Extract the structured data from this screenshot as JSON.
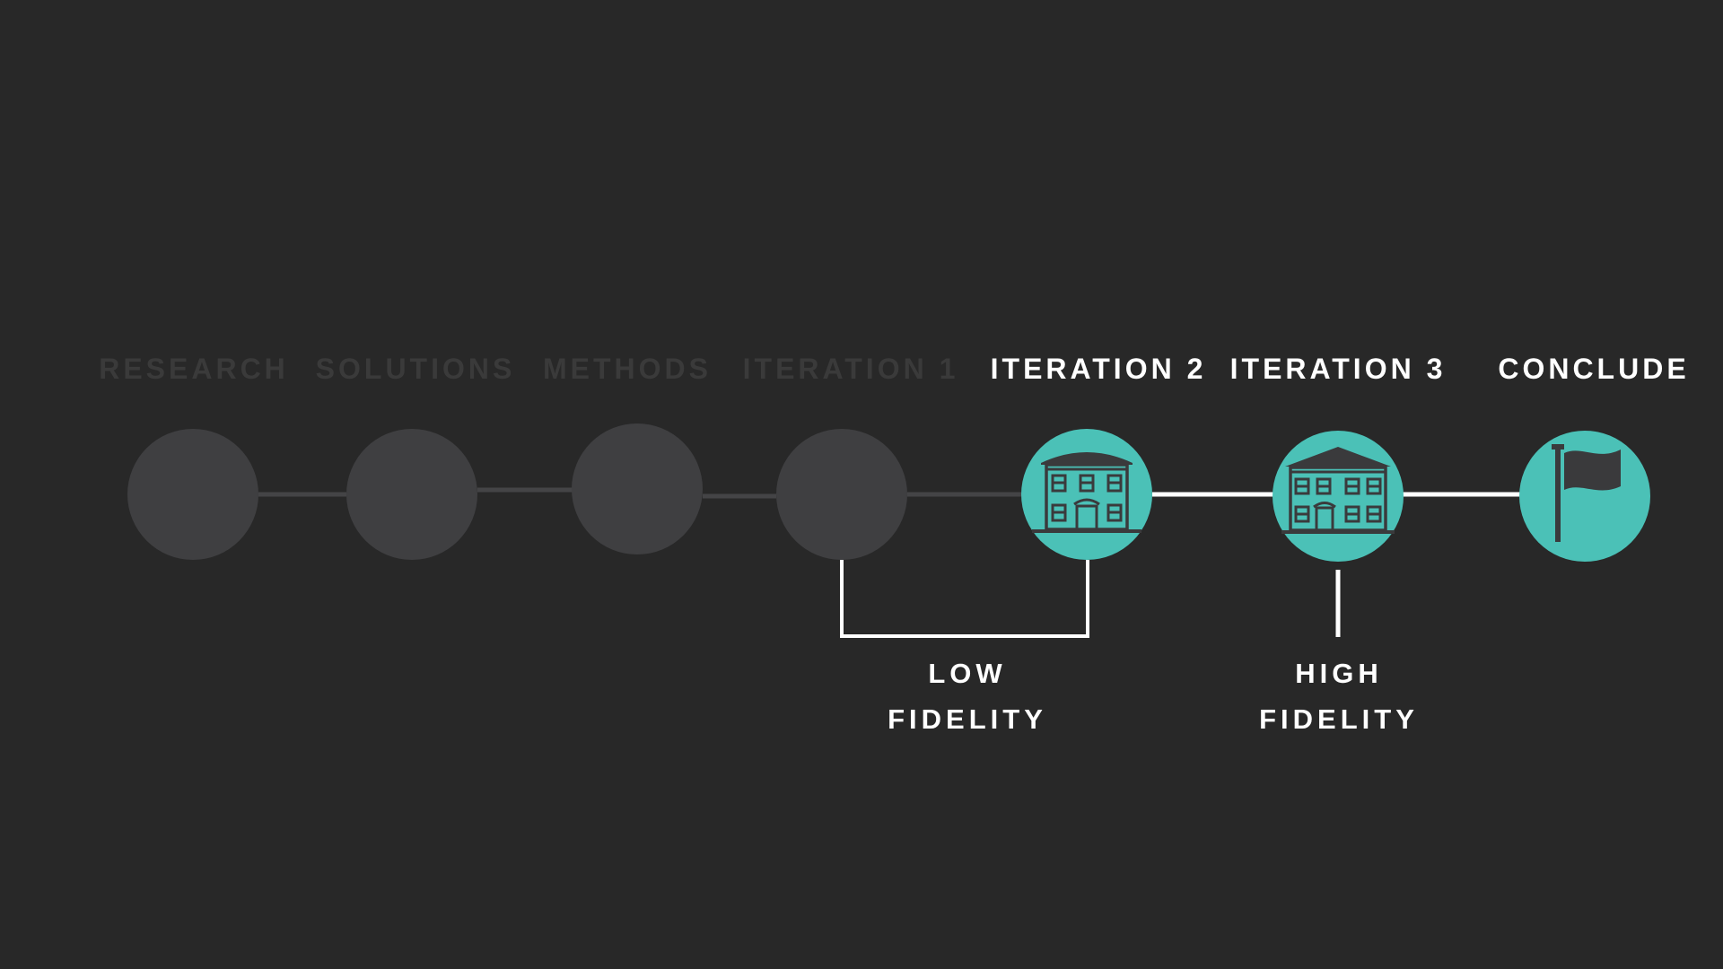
{
  "steps": [
    {
      "label": "RESEARCH",
      "state": "inactive",
      "icon": ""
    },
    {
      "label": "SOLUTIONS",
      "state": "inactive",
      "icon": ""
    },
    {
      "label": "METHODS",
      "state": "inactive",
      "icon": ""
    },
    {
      "label": "ITERATION 1",
      "state": "inactive",
      "icon": ""
    },
    {
      "label": "ITERATION 2",
      "state": "active",
      "icon": "building-icon"
    },
    {
      "label": "ITERATION 3",
      "state": "active",
      "icon": "large-building-icon"
    },
    {
      "label": "CONCLUDE",
      "state": "active",
      "icon": "flag-icon"
    }
  ],
  "annotations": {
    "low_fidelity": {
      "line1": "LOW",
      "line2": "FIDELITY"
    },
    "high_fidelity": {
      "line1": "HIGH",
      "line2": "FIDELITY"
    }
  },
  "colors": {
    "background": "#282828",
    "inactive_circle": "#3f3f41",
    "inactive_label": "#3a3a3a",
    "inactive_line": "#444446",
    "active_circle": "#4bc1b7",
    "active_label": "#ffffff",
    "active_line": "#ffffff",
    "icon_fill": "#3a3a3c"
  }
}
